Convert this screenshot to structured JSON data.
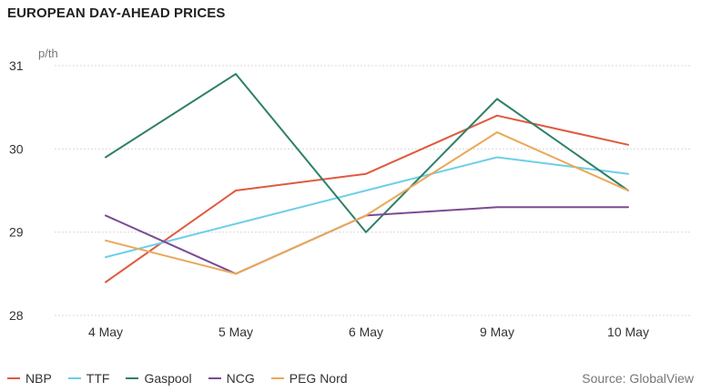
{
  "chart_data": {
    "type": "line",
    "title": "EUROPEAN DAY-AHEAD PRICES",
    "unit": "p/th",
    "categories": [
      "4 May",
      "5 May",
      "6 May",
      "9 May",
      "10 May"
    ],
    "yticks": [
      "28",
      "29",
      "30",
      "31"
    ],
    "ylim": [
      28,
      31
    ],
    "grid": true,
    "legend_placement": "bottom-left",
    "series": [
      {
        "name": "NBP",
        "color": "#e05a3f",
        "values": [
          28.4,
          29.5,
          29.7,
          30.4,
          30.05
        ]
      },
      {
        "name": "TTF",
        "color": "#6ccfe8",
        "values": [
          28.7,
          29.1,
          29.5,
          29.9,
          29.7
        ]
      },
      {
        "name": "Gaspool",
        "color": "#2e8068",
        "values": [
          29.9,
          30.9,
          29.0,
          30.6,
          29.5
        ]
      },
      {
        "name": "NCG",
        "color": "#7a4b93",
        "values": [
          29.2,
          28.5,
          29.2,
          29.3,
          29.3
        ]
      },
      {
        "name": "PEG Nord",
        "color": "#eaa858",
        "values": [
          28.9,
          28.5,
          29.2,
          30.2,
          29.5
        ]
      }
    ],
    "source": "Source: GlobalView"
  }
}
